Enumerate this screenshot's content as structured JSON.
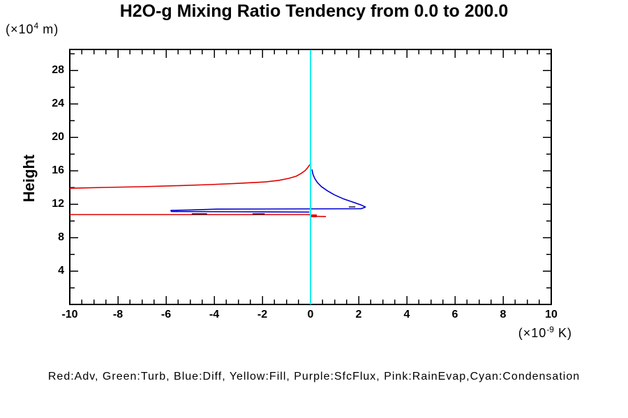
{
  "title": "H2O-g Mixing Ratio Tendency from 0.0 to 200.0",
  "legend_text": "Red:Adv, Green:Turb, Blue:Diff, Yellow:Fill, Purple:SfcFlux, Pink:RainEvap,Cyan:Condensation",
  "y_axis": {
    "label": "Height",
    "unit_prefix": "(×10",
    "unit_sup": "4",
    "unit_suffix": " m)"
  },
  "x_axis": {
    "unit_prefix": "(×10",
    "unit_sup": "-9",
    "unit_suffix": " K)"
  },
  "chart_data": {
    "type": "line",
    "title": "H2O-g Mixing Ratio Tendency from 0.0 to 200.0",
    "xlabel": "(×10^-9 K)",
    "ylabel": "Height (×10^4 m)",
    "xlim": [
      -10,
      10
    ],
    "ylim": [
      0,
      30.5
    ],
    "grid": false,
    "frame_color": "#000000",
    "x_major_ticks": [
      {
        "value": -10,
        "label": "-10"
      },
      {
        "value": -8,
        "label": "-8"
      },
      {
        "value": -6,
        "label": "-6"
      },
      {
        "value": -4,
        "label": "-4"
      },
      {
        "value": -2,
        "label": "-2"
      },
      {
        "value": 0,
        "label": "0"
      },
      {
        "value": 2,
        "label": "2"
      },
      {
        "value": 4,
        "label": "4"
      },
      {
        "value": 6,
        "label": "6"
      },
      {
        "value": 8,
        "label": "8"
      },
      {
        "value": 10,
        "label": "10"
      }
    ],
    "x_minor_step": 0.5,
    "y_major_ticks": [
      {
        "value": 4,
        "label": "4"
      },
      {
        "value": 8,
        "label": "8"
      },
      {
        "value": 12,
        "label": "12"
      },
      {
        "value": 16,
        "label": "16"
      },
      {
        "value": 20,
        "label": "20"
      },
      {
        "value": 24,
        "label": "24"
      },
      {
        "value": 28,
        "label": "28"
      }
    ],
    "y_minor_step": 2,
    "series": [
      {
        "name": "Adv (red) upper branch",
        "color": "#e00000",
        "width": 1.6,
        "points": [
          [
            -10,
            13.9
          ],
          [
            -8.5,
            14.0
          ],
          [
            -7,
            14.08
          ],
          [
            -5.6,
            14.2
          ],
          [
            -4.2,
            14.33
          ],
          [
            -3,
            14.48
          ],
          [
            -1.9,
            14.65
          ],
          [
            -1.3,
            14.85
          ],
          [
            -0.9,
            15.08
          ],
          [
            -0.6,
            15.33
          ],
          [
            -0.4,
            15.65
          ],
          [
            -0.23,
            16.0
          ],
          [
            -0.12,
            16.35
          ],
          [
            -0.06,
            16.6
          ],
          [
            -0.03,
            16.72
          ]
        ]
      },
      {
        "name": "Adv (red) lower spike",
        "color": "#e00000",
        "width": 1.6,
        "points": [
          [
            -10,
            10.75
          ],
          [
            -0.06,
            10.75
          ],
          [
            0.1,
            10.55
          ],
          [
            0.64,
            10.52
          ]
        ]
      },
      {
        "name": "Adv (red) near-zero blob",
        "color": "#e00000",
        "width": 4,
        "points": [
          [
            -0.02,
            10.6
          ],
          [
            0.26,
            10.6
          ]
        ]
      },
      {
        "name": "Diff (blue)",
        "color": "#0000d0",
        "width": 1.6,
        "points": [
          [
            0.06,
            16.15
          ],
          [
            0.1,
            15.6
          ],
          [
            0.17,
            15.1
          ],
          [
            0.28,
            14.6
          ],
          [
            0.45,
            14.1
          ],
          [
            0.7,
            13.6
          ],
          [
            1.0,
            13.1
          ],
          [
            1.35,
            12.65
          ],
          [
            1.75,
            12.25
          ],
          [
            2.1,
            11.9
          ],
          [
            2.28,
            11.65
          ],
          [
            2.1,
            11.45
          ],
          [
            -3.9,
            11.4
          ],
          [
            -5.0,
            11.3
          ],
          [
            -5.8,
            11.25
          ],
          [
            -5.78,
            11.12
          ],
          [
            -3.0,
            11.08
          ],
          [
            -0.05,
            11.05
          ]
        ]
      },
      {
        "name": "overlap-dark-segment-1",
        "color": "#0a0a0a",
        "width": 1.4,
        "points": [
          [
            -4.93,
            10.83
          ],
          [
            -4.3,
            10.83
          ]
        ]
      },
      {
        "name": "overlap-dark-segment-2",
        "color": "#0a0a0a",
        "width": 1.4,
        "points": [
          [
            -2.41,
            10.83
          ],
          [
            -1.9,
            10.83
          ]
        ]
      },
      {
        "name": "overlap-dark-segment-3",
        "color": "#0a0a0a",
        "width": 1.4,
        "points": [
          [
            1.59,
            11.67
          ],
          [
            1.86,
            11.67
          ]
        ]
      },
      {
        "name": "Condensation (cyan) zero line",
        "color": "#00f0f0",
        "width": 2,
        "points": [
          [
            0,
            0
          ],
          [
            0,
            30.45
          ]
        ]
      }
    ]
  }
}
